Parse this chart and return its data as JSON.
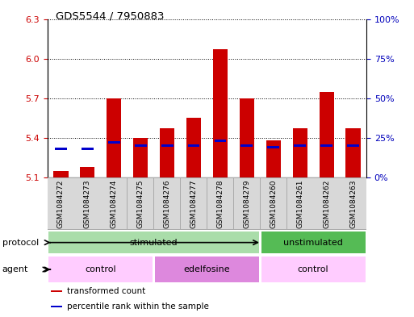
{
  "title": "GDS5544 / 7950883",
  "samples": [
    "GSM1084272",
    "GSM1084273",
    "GSM1084274",
    "GSM1084275",
    "GSM1084276",
    "GSM1084277",
    "GSM1084278",
    "GSM1084279",
    "GSM1084260",
    "GSM1084261",
    "GSM1084262",
    "GSM1084263"
  ],
  "bar_values": [
    5.15,
    5.18,
    5.7,
    5.4,
    5.47,
    5.55,
    6.07,
    5.7,
    5.38,
    5.47,
    5.75,
    5.47
  ],
  "percentile_values": [
    18,
    18,
    22,
    20,
    20,
    20,
    23,
    20,
    19,
    20,
    20,
    20
  ],
  "ylim_left": [
    5.1,
    6.3
  ],
  "ylim_right": [
    0,
    100
  ],
  "yticks_left": [
    5.1,
    5.4,
    5.7,
    6.0,
    6.3
  ],
  "yticks_right": [
    0,
    25,
    50,
    75,
    100
  ],
  "ytick_labels_right": [
    "0%",
    "25%",
    "50%",
    "75%",
    "100%"
  ],
  "bar_color": "#cc0000",
  "bar_base": 5.1,
  "percentile_color": "#0000cc",
  "bar_width": 0.55,
  "protocol_groups": [
    {
      "label": "stimulated",
      "samples": [
        0,
        1,
        2,
        3,
        4,
        5,
        6,
        7
      ],
      "color": "#aaddaa"
    },
    {
      "label": "unstimulated",
      "samples": [
        8,
        9,
        10,
        11
      ],
      "color": "#55bb55"
    }
  ],
  "agent_groups": [
    {
      "label": "control",
      "samples": [
        0,
        1,
        2,
        3
      ],
      "color": "#ffccff"
    },
    {
      "label": "edelfosine",
      "samples": [
        4,
        5,
        6,
        7
      ],
      "color": "#dd88dd"
    },
    {
      "label": "control",
      "samples": [
        8,
        9,
        10,
        11
      ],
      "color": "#ffccff"
    }
  ],
  "legend_items": [
    {
      "label": "transformed count",
      "color": "#cc0000"
    },
    {
      "label": "percentile rank within the sample",
      "color": "#0000cc"
    }
  ],
  "bg_color": "#ffffff",
  "left_color": "#cc0000",
  "right_color": "#0000bb",
  "grid_color": "#000000"
}
